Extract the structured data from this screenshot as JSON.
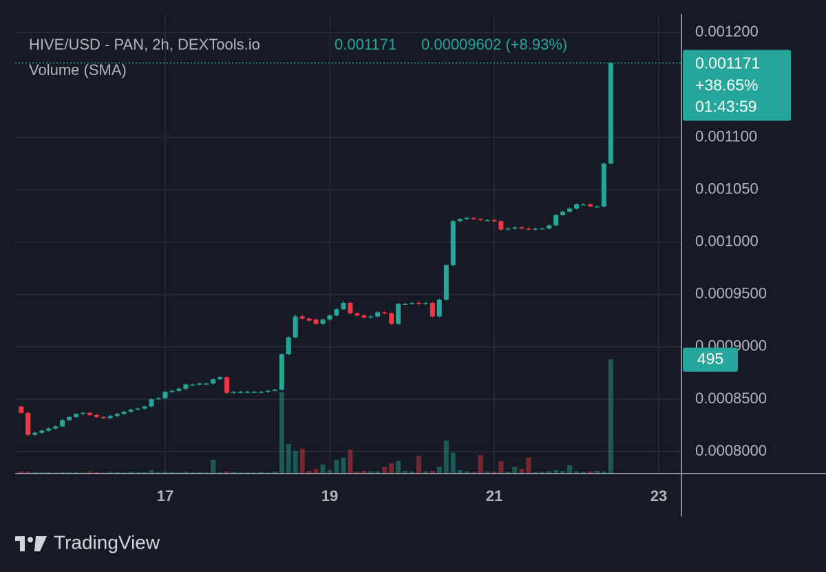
{
  "chart_data": {
    "type": "candlestick",
    "title": "HIVE/USD - PAN, 2h, DEXTools.io",
    "change_label": "0.00009602 (+8.93%)",
    "volume_label": "Volume (SMA)",
    "percent_change_label": "+38.65%",
    "countdown": "01:43:59",
    "up_color": "#26a69a",
    "down_color": "#f23645",
    "grid": true,
    "xlim": [
      15.176,
      23.276
    ],
    "xticks": [
      17,
      19,
      21,
      23
    ],
    "ylim": [
      0.000779,
      0.001218
    ],
    "yticks": [
      {
        "value": 0.0012,
        "label": "0.001200"
      },
      {
        "value": 0.0011,
        "label": "0.001100"
      },
      {
        "value": 0.00105,
        "label": "0.001050"
      },
      {
        "value": 0.001,
        "label": "0.001000"
      },
      {
        "value": 0.00095,
        "label": "0.0009500"
      },
      {
        "value": 0.0009,
        "label": "0.0009000"
      },
      {
        "value": 0.00085,
        "label": "0.0008500"
      },
      {
        "value": 0.0008,
        "label": "0.0008000"
      }
    ],
    "y2lim": [
      0,
      1992
    ],
    "x": [
      15.25,
      15.333,
      15.417,
      15.5,
      15.583,
      15.667,
      15.75,
      15.833,
      15.917,
      16,
      16.083,
      16.167,
      16.25,
      16.333,
      16.417,
      16.5,
      16.583,
      16.667,
      16.75,
      16.833,
      16.917,
      17,
      17.083,
      17.167,
      17.25,
      17.333,
      17.417,
      17.5,
      17.583,
      17.667,
      17.75,
      17.833,
      17.917,
      18,
      18.083,
      18.167,
      18.25,
      18.333,
      18.417,
      18.5,
      18.583,
      18.667,
      18.75,
      18.833,
      18.917,
      19,
      19.083,
      19.167,
      19.25,
      19.333,
      19.417,
      19.5,
      19.583,
      19.667,
      19.75,
      19.833,
      19.917,
      20,
      20.083,
      20.167,
      20.25,
      20.333,
      20.417,
      20.5,
      20.583,
      20.667,
      20.75,
      20.833,
      20.917,
      21,
      21.083,
      21.167,
      21.25,
      21.333,
      21.417,
      21.5,
      21.583,
      21.667,
      21.75,
      21.833,
      21.917,
      22,
      22.083,
      22.167,
      22.25,
      22.333,
      22.417
    ],
    "open": [
      0.000843,
      0.000837,
      0.000816,
      0.000818,
      0.00082,
      0.000822,
      0.000824,
      0.00083,
      0.000833,
      0.000836,
      0.000837,
      0.000835,
      0.000833,
      0.000832,
      0.000834,
      0.000836,
      0.000838,
      0.00084,
      0.000841,
      0.000843,
      0.00085,
      0.000851,
      0.000857,
      0.000858,
      0.00086,
      0.000864,
      0.000864,
      0.000865,
      0.000865,
      0.000869,
      0.000871,
      0.000856,
      0.000857,
      0.000857,
      0.000857,
      0.000857,
      0.000857,
      0.000858,
      0.000859,
      0.000893,
      0.000909,
      0.000929,
      0.000927,
      0.000926,
      0.000922,
      0.000926,
      0.00093,
      0.000936,
      0.000942,
      0.000932,
      0.00093,
      0.000928,
      0.000929,
      0.000933,
      0.000932,
      0.000922,
      0.000941,
      0.000941,
      0.000942,
      0.000941,
      0.000942,
      0.000929,
      0.000945,
      0.000978,
      0.00102,
      0.001022,
      0.001023,
      0.001022,
      0.001021,
      0.001021,
      0.00102,
      0.001012,
      0.001013,
      0.001014,
      0.001013,
      0.001012,
      0.001013,
      0.001013,
      0.001016,
      0.001026,
      0.001029,
      0.001032,
      0.001036,
      0.001036,
      0.001034,
      0.001034,
      0.001075
    ],
    "high": [
      0.000844,
      0.000838,
      0.000819,
      0.000821,
      0.000823,
      0.000825,
      0.000831,
      0.000834,
      0.000837,
      0.000838,
      0.000838,
      0.000836,
      0.000834,
      0.000835,
      0.000837,
      0.000839,
      0.000841,
      0.000842,
      0.000844,
      0.000851,
      0.000852,
      0.000858,
      0.000859,
      0.000861,
      0.000865,
      0.000865,
      0.000866,
      0.000866,
      0.00087,
      0.000872,
      0.000872,
      0.000858,
      0.000858,
      0.000858,
      0.000858,
      0.000858,
      0.000859,
      0.00086,
      0.000894,
      0.00091,
      0.000931,
      0.000931,
      0.000928,
      0.000927,
      0.000927,
      0.000931,
      0.000937,
      0.000944,
      0.000943,
      0.000933,
      0.000931,
      0.00093,
      0.000934,
      0.000934,
      0.000933,
      0.000942,
      0.000942,
      0.000943,
      0.000944,
      0.000943,
      0.000943,
      0.000946,
      0.000979,
      0.001021,
      0.001023,
      0.001024,
      0.001024,
      0.001023,
      0.001022,
      0.001022,
      0.001021,
      0.001014,
      0.001015,
      0.001015,
      0.001014,
      0.001014,
      0.001014,
      0.001017,
      0.001027,
      0.00103,
      0.001033,
      0.001037,
      0.001037,
      0.001037,
      0.001035,
      0.001076,
      0.001172
    ],
    "low": [
      0.000836,
      0.000815,
      0.000815,
      0.000817,
      0.000819,
      0.000821,
      0.000823,
      0.000829,
      0.000832,
      0.000835,
      0.000834,
      0.000832,
      0.000831,
      0.000831,
      0.000833,
      0.000835,
      0.000837,
      0.000839,
      0.00084,
      0.000842,
      0.000849,
      0.00085,
      0.000856,
      0.000857,
      0.000859,
      0.000863,
      0.000863,
      0.000864,
      0.000864,
      0.000868,
      0.000855,
      0.000855,
      0.000856,
      0.000856,
      0.000856,
      0.000856,
      0.000856,
      0.000857,
      0.000858,
      0.000892,
      0.000908,
      0.000926,
      0.000924,
      0.000921,
      0.000921,
      0.000925,
      0.000929,
      0.000935,
      0.000931,
      0.000929,
      0.000927,
      0.000927,
      0.000928,
      0.000931,
      0.000921,
      0.000921,
      0.00094,
      0.00094,
      0.00094,
      0.00094,
      0.000928,
      0.000928,
      0.000944,
      0.000977,
      0.001019,
      0.001021,
      0.001021,
      0.00102,
      0.00102,
      0.001019,
      0.001011,
      0.001011,
      0.001012,
      0.001012,
      0.001011,
      0.001011,
      0.001012,
      0.001012,
      0.001015,
      0.001025,
      0.001028,
      0.001031,
      0.001035,
      0.001033,
      0.001033,
      0.001033,
      0.001074
    ],
    "close": [
      0.000837,
      0.000816,
      0.000818,
      0.00082,
      0.000822,
      0.000824,
      0.00083,
      0.000833,
      0.000836,
      0.000837,
      0.000835,
      0.000833,
      0.000832,
      0.000834,
      0.000836,
      0.000838,
      0.00084,
      0.000841,
      0.000843,
      0.00085,
      0.000851,
      0.000857,
      0.000858,
      0.00086,
      0.000864,
      0.000864,
      0.000865,
      0.000865,
      0.000869,
      0.000871,
      0.000856,
      0.000857,
      0.000857,
      0.000857,
      0.000857,
      0.000857,
      0.000858,
      0.000859,
      0.000893,
      0.000909,
      0.000929,
      0.000927,
      0.000925,
      0.000922,
      0.000926,
      0.00093,
      0.000936,
      0.000942,
      0.000932,
      0.00093,
      0.000928,
      0.000929,
      0.000933,
      0.000932,
      0.000922,
      0.000941,
      0.000941,
      0.000942,
      0.000941,
      0.000942,
      0.000929,
      0.000945,
      0.000978,
      0.00102,
      0.001022,
      0.001023,
      0.001022,
      0.001021,
      0.001021,
      0.00102,
      0.001012,
      0.001013,
      0.001014,
      0.001013,
      0.001012,
      0.001013,
      0.001013,
      0.001016,
      0.001026,
      0.001029,
      0.001032,
      0.001036,
      0.001036,
      0.001034,
      0.001034,
      0.001075,
      0.001171
    ],
    "volume": [
      9,
      8,
      6,
      7,
      6,
      5,
      6,
      7,
      6,
      5,
      9,
      6,
      5,
      7,
      6,
      5,
      8,
      6,
      6,
      14,
      6,
      7,
      6,
      5,
      8,
      6,
      6,
      5,
      60,
      6,
      9,
      7,
      5,
      6,
      5,
      6,
      5,
      8,
      352,
      128,
      98,
      107,
      12,
      20,
      40,
      15,
      60,
      69,
      104,
      8,
      12,
      10,
      9,
      30,
      45,
      55,
      12,
      9,
      75,
      10,
      12,
      30,
      143,
      90,
      15,
      10,
      8,
      80,
      9,
      8,
      54,
      8,
      30,
      20,
      69,
      6,
      8,
      10,
      15,
      12,
      36,
      10,
      8,
      10,
      12,
      9,
      495
    ]
  },
  "footer": {
    "brand": "TradingView"
  }
}
